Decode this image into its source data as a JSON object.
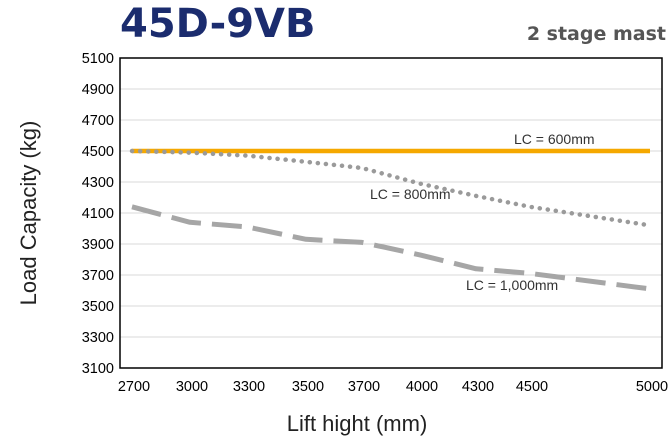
{
  "chart_data": {
    "type": "line",
    "title": "45D-9VB",
    "subtitle": "2 stage mast",
    "xlabel": "Lift hight (mm)",
    "ylabel": "Load Capacity (kg)",
    "categories": [
      "2700",
      "3000",
      "3300",
      "3500",
      "3700",
      "4000",
      "4300",
      "4500",
      "5000"
    ],
    "y_ticks": [
      3100,
      3300,
      3500,
      3700,
      3900,
      4100,
      4300,
      4500,
      4700,
      4900,
      5100
    ],
    "ylim": [
      3100,
      5100
    ],
    "grid": "horizontal",
    "series": [
      {
        "name": "LC = 600mm",
        "color": "#f5a800",
        "style": "solid",
        "values": [
          4500,
          4500,
          4500,
          4500,
          4500,
          4500,
          4500,
          4500,
          4500
        ]
      },
      {
        "name": "LC = 800mm",
        "color": "#9a9a9a",
        "style": "dotted",
        "values": [
          4500,
          4490,
          4470,
          4430,
          4390,
          4290,
          4210,
          4140,
          4020
        ]
      },
      {
        "name": "LC = 1,000mm",
        "color": "#a6a6a6",
        "style": "dashed",
        "values": [
          4140,
          4040,
          4010,
          3930,
          3910,
          3830,
          3740,
          3710,
          3610
        ]
      }
    ]
  }
}
